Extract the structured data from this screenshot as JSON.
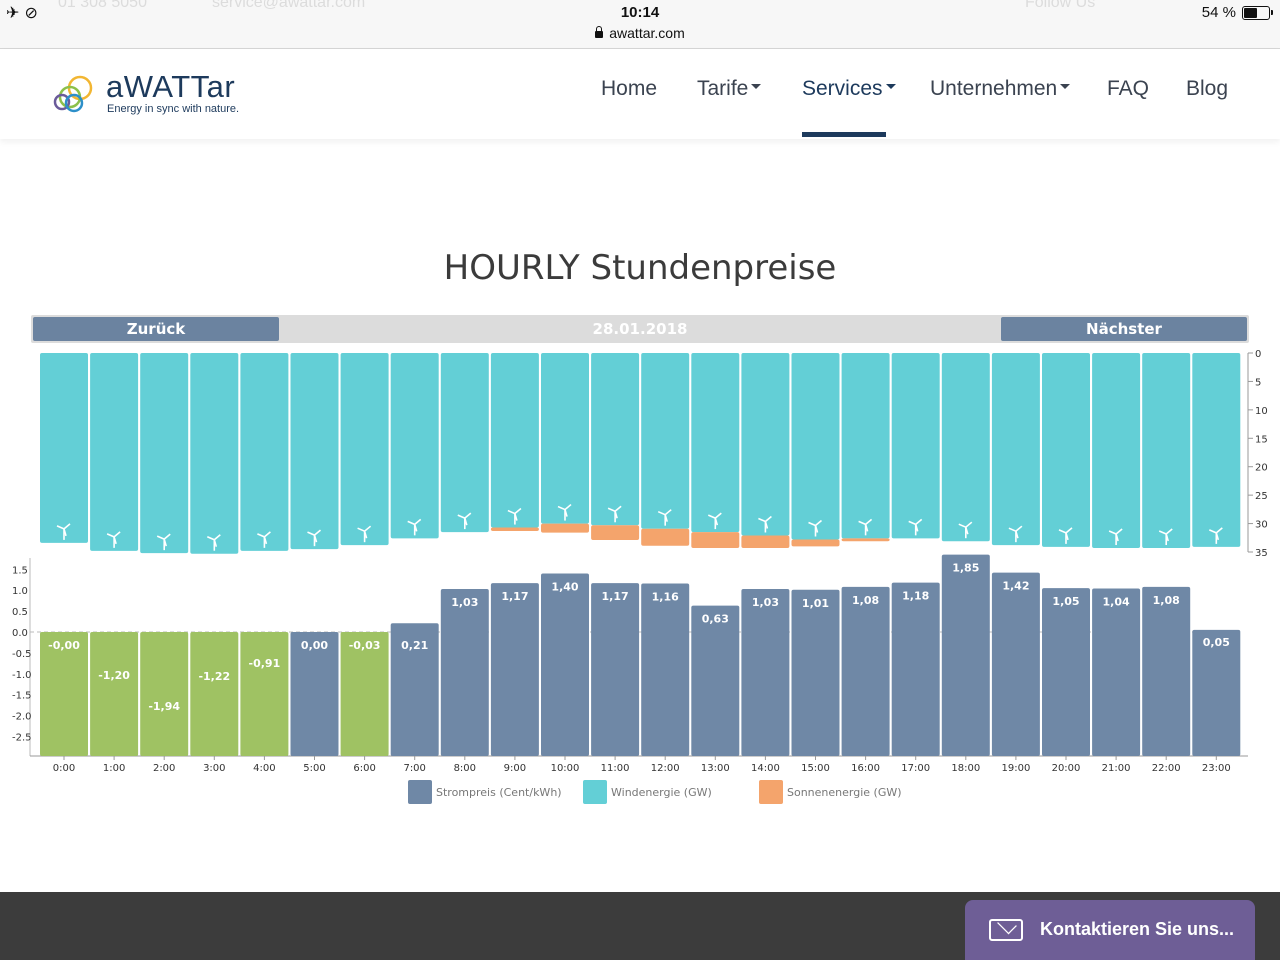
{
  "status_bar": {
    "time": "10:14",
    "url": "awattar.com",
    "battery": "54 %",
    "battery_level": 0.54,
    "ghost_phone": "01 308 5050",
    "ghost_email": "service@awattar.com",
    "ghost_follow": "Follow Us"
  },
  "header": {
    "logo_text": "aWATTar",
    "logo_tagline": "Energy in sync with nature.",
    "nav": [
      {
        "label": "Home",
        "dropdown": false
      },
      {
        "label": "Tarife",
        "dropdown": true
      },
      {
        "label": "Services",
        "dropdown": true,
        "active": true
      },
      {
        "label": "Unternehmen",
        "dropdown": true
      },
      {
        "label": "FAQ",
        "dropdown": false
      },
      {
        "label": "Blog",
        "dropdown": false
      }
    ]
  },
  "page": {
    "title": "HOURLY Stundenpreise",
    "prev_label": "Zurück",
    "next_label": "Nächster",
    "date": "28.01.2018"
  },
  "colors": {
    "price_positive": "#6f88a6",
    "price_negative": "#9fc263",
    "wind": "#63cfd6",
    "solar": "#f4a46c",
    "nav_button": "#6b83a0",
    "brand_dark": "#1d3a5c"
  },
  "chart_data": {
    "type": "bar",
    "categories": [
      "0:00",
      "1:00",
      "2:00",
      "3:00",
      "4:00",
      "5:00",
      "6:00",
      "7:00",
      "8:00",
      "9:00",
      "10:00",
      "11:00",
      "12:00",
      "13:00",
      "14:00",
      "15:00",
      "16:00",
      "17:00",
      "18:00",
      "19:00",
      "20:00",
      "21:00",
      "22:00",
      "23:00"
    ],
    "price_series": {
      "name": "Strompreis (Cent/kWh)",
      "values": [
        -0.0,
        -1.2,
        -1.94,
        -1.22,
        -0.91,
        0.0,
        -0.03,
        0.21,
        1.03,
        1.17,
        1.4,
        1.17,
        1.16,
        0.63,
        1.03,
        1.01,
        1.08,
        1.18,
        1.85,
        1.42,
        1.05,
        1.04,
        1.08,
        0.05
      ],
      "labels": [
        "-0,00",
        "-1,20",
        "-1,94",
        "-1,22",
        "-0,91",
        "0,00",
        "-0,03",
        "0,21",
        "1,03",
        "1,17",
        "1,40",
        "1,17",
        "1,16",
        "0,63",
        "1,03",
        "1,01",
        "1,08",
        "1,18",
        "1,85",
        "1,42",
        "1,05",
        "1,04",
        "1,08",
        "0,05"
      ],
      "negative_color_hours": [
        0,
        1,
        2,
        3,
        4,
        6
      ]
    },
    "wind_series": {
      "name": "Windenergie (GW)",
      "values": [
        33.4,
        34.8,
        35.2,
        35.3,
        34.8,
        34.5,
        33.8,
        32.6,
        31.5,
        30.7,
        30.0,
        30.3,
        30.9,
        31.5,
        32.1,
        32.8,
        32.6,
        32.6,
        33.1,
        33.8,
        34.1,
        34.3,
        34.3,
        34.1
      ]
    },
    "solar_series": {
      "name": "Sonnenenergie (GW)",
      "values": [
        0,
        0,
        0,
        0,
        0,
        0,
        0,
        0,
        0,
        0.6,
        1.6,
        2.6,
        3.0,
        2.8,
        2.2,
        1.2,
        0.5,
        0,
        0,
        0,
        0,
        0,
        0,
        0
      ]
    },
    "energy_axis": {
      "ticks": [
        0,
        5,
        10,
        15,
        20,
        25,
        30,
        35
      ],
      "range": [
        0,
        35
      ],
      "inverted": true
    },
    "price_axis": {
      "ticks": [
        1.5,
        1.0,
        0.5,
        0.0,
        -0.5,
        -1.0,
        -1.5,
        -2.0,
        -2.5
      ],
      "tick_labels": [
        "1.5",
        "1.0",
        "0.5",
        "0.0",
        "-0.5",
        "-1.0",
        "-1.5",
        "-2.0",
        "-2.5"
      ],
      "range": [
        -2.9,
        1.95
      ]
    },
    "legend": [
      {
        "name": "Strompreis (Cent/kWh)",
        "color": "#6f88a6"
      },
      {
        "name": "Windenergie (GW)",
        "color": "#63cfd6"
      },
      {
        "name": "Sonnenenergie (GW)",
        "color": "#f4a46c"
      }
    ],
    "legend_position": "bottom"
  },
  "contact": {
    "label": "Kontaktieren Sie uns..."
  }
}
